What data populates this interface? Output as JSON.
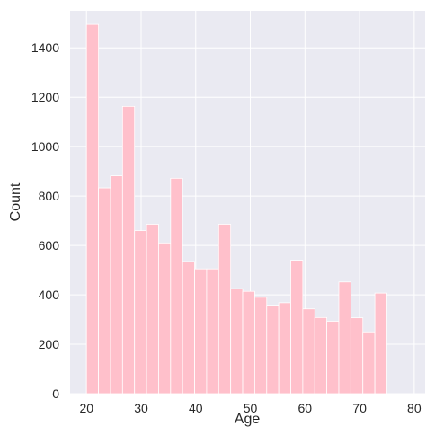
{
  "chart_data": {
    "type": "bar",
    "subtype": "histogram",
    "xlabel": "Age",
    "ylabel": "Count",
    "xlim": [
      17,
      82
    ],
    "ylim": [
      0,
      1550
    ],
    "xticks": [
      20,
      30,
      40,
      50,
      60,
      70,
      80
    ],
    "yticks": [
      0,
      200,
      400,
      600,
      800,
      1000,
      1200,
      1400
    ],
    "bin_width": 2.2,
    "bin_start": 20,
    "values": [
      1495,
      833,
      882,
      1163,
      660,
      686,
      610,
      872,
      535,
      505,
      505,
      686,
      425,
      414,
      390,
      358,
      368,
      540,
      343,
      308,
      293,
      452,
      307,
      250,
      407
    ],
    "grid": true,
    "background_color": "#eaeaf2",
    "bar_color": "#ffc0cb",
    "bar_edge_color": "#ffffff"
  }
}
